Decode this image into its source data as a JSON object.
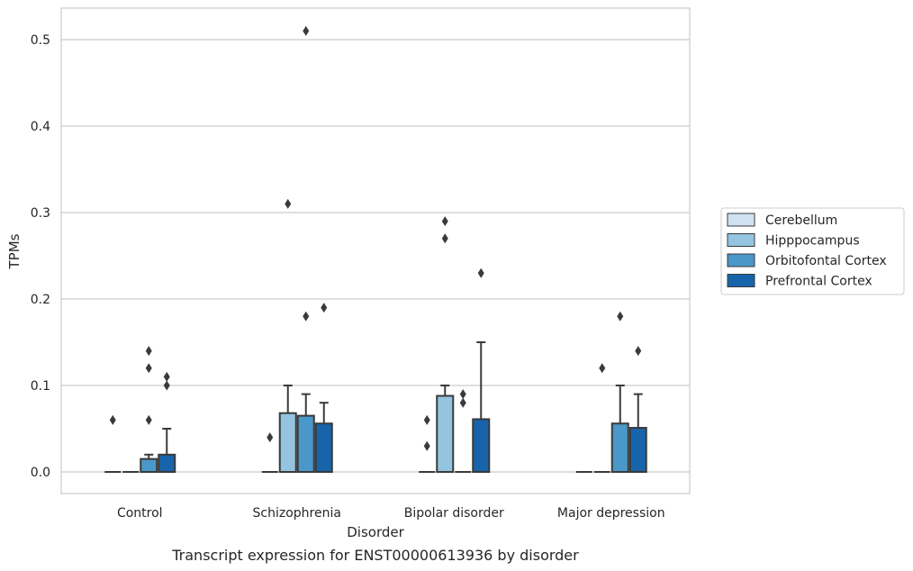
{
  "chart_data": {
    "type": "box",
    "title": "",
    "caption": "Transcript expression for ENST00000613936 by disorder",
    "xlabel": "Disorder",
    "ylabel": "TPMs",
    "ylim": [
      -0.025,
      0.537
    ],
    "yticks": [
      0.0,
      0.1,
      0.2,
      0.3,
      0.4,
      0.5
    ],
    "ytick_labels": [
      "0.0",
      "0.1",
      "0.2",
      "0.3",
      "0.4",
      "0.5"
    ],
    "grid": true,
    "legend_placement": "right-outside",
    "categories": [
      "Control",
      "Schizophrenia",
      "Bipolar disorder",
      "Major depression"
    ],
    "series": [
      {
        "name": "Cerebellum",
        "color": "#d0e1f2",
        "boxes": [
          {
            "q1": 0,
            "median": 0,
            "q3": 0,
            "whisker_low": 0,
            "whisker_high": 0,
            "outliers": [
              0.06
            ]
          },
          {
            "q1": 0,
            "median": 0,
            "q3": 0,
            "whisker_low": 0,
            "whisker_high": 0,
            "outliers": [
              0.04
            ]
          },
          {
            "q1": 0,
            "median": 0,
            "q3": 0,
            "whisker_low": 0,
            "whisker_high": 0,
            "outliers": [
              0.03,
              0.06
            ]
          },
          {
            "q1": 0,
            "median": 0,
            "q3": 0,
            "whisker_low": 0,
            "whisker_high": 0,
            "outliers": []
          }
        ]
      },
      {
        "name": "Hipppocampus",
        "color": "#94c4df",
        "boxes": [
          {
            "q1": 0,
            "median": 0,
            "q3": 0,
            "whisker_low": 0,
            "whisker_high": 0,
            "outliers": []
          },
          {
            "q1": 0,
            "median": 0,
            "q3": 0.068,
            "whisker_low": 0,
            "whisker_high": 0.1,
            "outliers": [
              0.31
            ]
          },
          {
            "q1": 0,
            "median": 0,
            "q3": 0.088,
            "whisker_low": 0,
            "whisker_high": 0.1,
            "outliers": [
              0.27,
              0.29
            ]
          },
          {
            "q1": 0,
            "median": 0,
            "q3": 0,
            "whisker_low": 0,
            "whisker_high": 0,
            "outliers": [
              0.12
            ]
          }
        ]
      },
      {
        "name": "Orbitofontal Cortex",
        "color": "#4a98c9",
        "boxes": [
          {
            "q1": 0,
            "median": 0,
            "q3": 0.015,
            "whisker_low": 0,
            "whisker_high": 0.02,
            "outliers": [
              0.06,
              0.12,
              0.14
            ]
          },
          {
            "q1": 0,
            "median": 0,
            "q3": 0.065,
            "whisker_low": 0,
            "whisker_high": 0.09,
            "outliers": [
              0.18,
              0.51
            ]
          },
          {
            "q1": 0,
            "median": 0,
            "q3": 0,
            "whisker_low": 0,
            "whisker_high": 0,
            "outliers": [
              0.08,
              0.09
            ]
          },
          {
            "q1": 0,
            "median": 0,
            "q3": 0.056,
            "whisker_low": 0,
            "whisker_high": 0.1,
            "outliers": [
              0.18
            ]
          }
        ]
      },
      {
        "name": "Prefrontal Cortex",
        "color": "#1764ab",
        "boxes": [
          {
            "q1": 0,
            "median": 0,
            "q3": 0.02,
            "whisker_low": 0,
            "whisker_high": 0.05,
            "outliers": [
              0.1,
              0.11
            ]
          },
          {
            "q1": 0,
            "median": 0,
            "q3": 0.056,
            "whisker_low": 0,
            "whisker_high": 0.08,
            "outliers": [
              0.19
            ]
          },
          {
            "q1": 0,
            "median": 0,
            "q3": 0.061,
            "whisker_low": 0,
            "whisker_high": 0.15,
            "outliers": [
              0.23
            ]
          },
          {
            "q1": 0,
            "median": 0,
            "q3": 0.051,
            "whisker_low": 0,
            "whisker_high": 0.09,
            "outliers": [
              0.14
            ]
          }
        ]
      }
    ]
  }
}
